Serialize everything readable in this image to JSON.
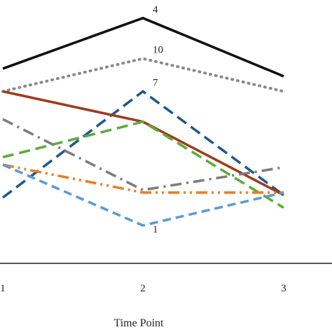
{
  "chart_data": {
    "type": "line",
    "xlabel": "Time Point",
    "ylabel": "",
    "title": "",
    "x": [
      1,
      2,
      3
    ],
    "x_tick_labels": [
      "1",
      "2",
      "3"
    ],
    "ylim": [
      0,
      100
    ],
    "grid": false,
    "legend": "none",
    "series": [
      {
        "name": "4",
        "values": [
          77,
          97,
          74
        ],
        "color": "#111111",
        "dash": "solid",
        "label_at": 2
      },
      {
        "name": "10",
        "values": [
          68,
          81,
          68
        ],
        "color": "#888888",
        "dash": "dot",
        "label_at": 2
      },
      {
        "name": "7",
        "values": [
          26,
          68,
          27
        ],
        "color": "#1f5a8c",
        "dash": "dash-long",
        "label_at": 2
      },
      {
        "name": "",
        "values": [
          68,
          56,
          27
        ],
        "color": "#9c3d1c",
        "dash": "solid",
        "label_at": null
      },
      {
        "name": "",
        "values": [
          42,
          56,
          22
        ],
        "color": "#5dab3a",
        "dash": "dash-long",
        "label_at": null
      },
      {
        "name": "",
        "values": [
          57,
          29,
          38
        ],
        "color": "#7d7d7d",
        "dash": "dash-dot",
        "label_at": null
      },
      {
        "name": "",
        "values": [
          39,
          28,
          28
        ],
        "color": "#ee7c25",
        "dash": "dash-dot-dot",
        "label_at": null
      },
      {
        "name": "1",
        "values": [
          39,
          15,
          28
        ],
        "color": "#5b9bd5",
        "dash": "dash",
        "label_at": 2
      }
    ]
  }
}
